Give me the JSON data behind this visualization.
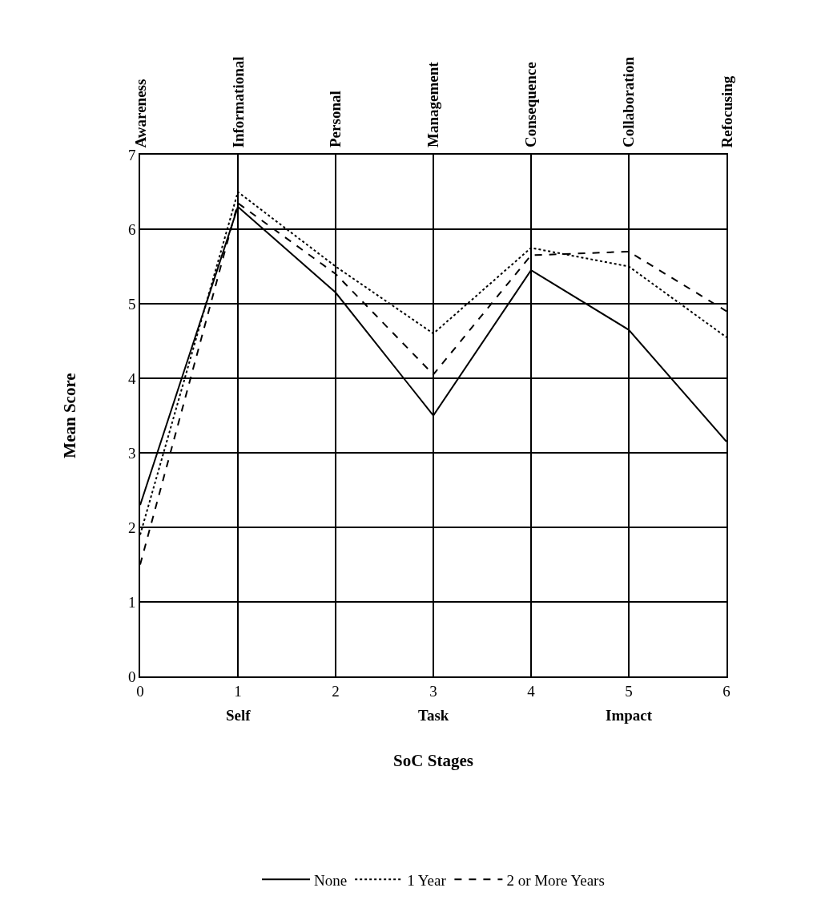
{
  "chart_data": {
    "type": "line",
    "xlabel": "SoC Stages",
    "ylabel": "Mean Score",
    "x": [
      0,
      1,
      2,
      3,
      4,
      5,
      6
    ],
    "series": [
      {
        "name": "None",
        "color": "#000000",
        "line_style": "solid",
        "values": [
          2.3,
          6.3,
          5.15,
          3.5,
          5.45,
          4.65,
          3.15
        ]
      },
      {
        "name": "1 Year",
        "color": "#000000",
        "line_style": "dotted",
        "values": [
          1.9,
          6.5,
          5.5,
          4.6,
          5.75,
          5.5,
          4.55
        ]
      },
      {
        "name": "2 or More Years",
        "color": "#000000",
        "line_style": "dashed",
        "values": [
          1.5,
          6.35,
          5.4,
          4.05,
          5.65,
          5.7,
          4.9
        ]
      }
    ],
    "xlim": [
      0,
      6
    ],
    "xticks": [
      0,
      1,
      2,
      3,
      4,
      5,
      6
    ],
    "ylim": [
      0,
      7
    ],
    "yticks": [
      0,
      1,
      2,
      3,
      4,
      5,
      6,
      7
    ],
    "annotations": [
      "Awareness",
      "Informational",
      "Personal",
      "Management",
      "Consequence",
      "Collaboration",
      "Refocusing",
      "Self",
      "Task",
      "Impact"
    ],
    "grid": true,
    "legend": "bottom",
    "marker": "none"
  }
}
